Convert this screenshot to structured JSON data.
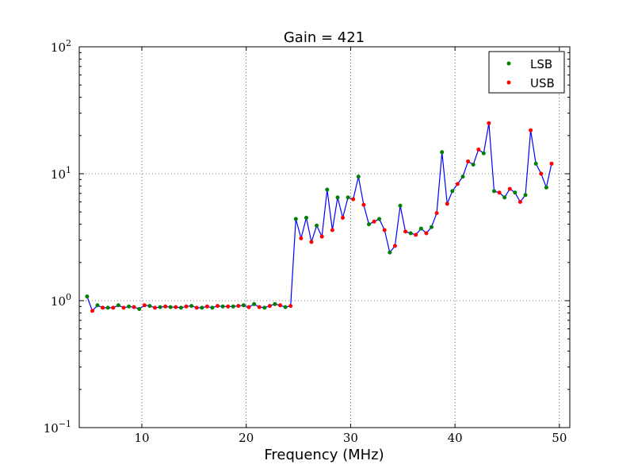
{
  "chart_data": {
    "type": "line",
    "title": "Gain = 421",
    "xlabel": "Frequency (MHz)",
    "ylabel": "",
    "xlim": [
      4,
      51
    ],
    "ylim": [
      0.1,
      100
    ],
    "yscale": "log",
    "grid": true,
    "legend": "top-right",
    "x_ticks": [
      10,
      20,
      30,
      40,
      50
    ],
    "y_ticks": [
      {
        "base": "10",
        "exp": "−1"
      },
      {
        "base": "10",
        "exp": "0"
      },
      {
        "base": "10",
        "exp": "1"
      },
      {
        "base": "10",
        "exp": "2"
      }
    ],
    "series": [
      {
        "name": "LSB",
        "color": "#008000",
        "marker": "dot"
      },
      {
        "name": "USB",
        "color": "#ff0000",
        "marker": "dot"
      }
    ],
    "line_color": "#0000ff",
    "x": [
      4.75,
      5.25,
      5.75,
      6.25,
      6.75,
      7.25,
      7.75,
      8.25,
      8.75,
      9.25,
      9.75,
      10.25,
      10.75,
      11.25,
      11.75,
      12.25,
      12.75,
      13.25,
      13.75,
      14.25,
      14.75,
      15.25,
      15.75,
      16.25,
      16.75,
      17.25,
      17.75,
      18.25,
      18.75,
      19.25,
      19.75,
      20.25,
      20.75,
      21.25,
      21.75,
      22.25,
      22.75,
      23.25,
      23.75,
      24.25,
      24.75,
      25.25,
      25.75,
      26.25,
      26.75,
      27.25,
      27.75,
      28.25,
      28.75,
      29.25,
      29.75,
      30.25,
      30.75,
      31.25,
      31.75,
      32.25,
      32.75,
      33.25,
      33.75,
      34.25,
      34.75,
      35.25,
      35.75,
      36.25,
      36.75,
      37.25,
      37.75,
      38.25,
      38.75,
      39.25,
      39.75,
      40.25,
      40.75,
      41.25,
      41.75,
      42.25,
      42.75,
      43.25,
      43.75,
      44.25,
      44.75,
      45.25,
      45.75,
      46.25,
      46.75,
      47.25,
      47.75,
      48.25,
      48.75,
      49.25
    ],
    "y": [
      1.08,
      0.83,
      0.92,
      0.88,
      0.88,
      0.88,
      0.92,
      0.88,
      0.9,
      0.89,
      0.86,
      0.92,
      0.91,
      0.88,
      0.89,
      0.9,
      0.89,
      0.89,
      0.88,
      0.9,
      0.91,
      0.88,
      0.88,
      0.9,
      0.88,
      0.91,
      0.9,
      0.9,
      0.9,
      0.91,
      0.92,
      0.89,
      0.94,
      0.89,
      0.88,
      0.91,
      0.94,
      0.92,
      0.89,
      0.91,
      4.4,
      3.1,
      4.5,
      2.9,
      3.9,
      3.2,
      7.5,
      3.6,
      6.5,
      4.5,
      6.5,
      6.3,
      9.5,
      5.7,
      4.0,
      4.2,
      4.4,
      3.6,
      2.4,
      2.7,
      5.6,
      3.5,
      3.4,
      3.3,
      3.7,
      3.4,
      3.8,
      4.9,
      14.8,
      5.8,
      7.3,
      8.3,
      9.5,
      12.5,
      11.8,
      15.5,
      14.5,
      25.0,
      7.3,
      7.1,
      6.5,
      7.6,
      7.1,
      6.0,
      6.8,
      22.0,
      12.0,
      10.0,
      7.8,
      12.0
    ],
    "series_of_point": [
      "LSB",
      "USB",
      "LSB",
      "USB",
      "LSB",
      "USB",
      "LSB",
      "USB",
      "LSB",
      "USB",
      "LSB",
      "USB",
      "LSB",
      "USB",
      "LSB",
      "USB",
      "LSB",
      "USB",
      "LSB",
      "USB",
      "LSB",
      "USB",
      "LSB",
      "USB",
      "LSB",
      "USB",
      "LSB",
      "USB",
      "LSB",
      "USB",
      "LSB",
      "USB",
      "LSB",
      "USB",
      "LSB",
      "USB",
      "LSB",
      "USB",
      "LSB",
      "USB",
      "LSB",
      "USB",
      "LSB",
      "USB",
      "LSB",
      "USB",
      "LSB",
      "USB",
      "LSB",
      "USB",
      "LSB",
      "USB",
      "LSB",
      "USB",
      "LSB",
      "USB",
      "LSB",
      "USB",
      "LSB",
      "USB",
      "LSB",
      "USB",
      "LSB",
      "USB",
      "LSB",
      "USB",
      "LSB",
      "USB",
      "LSB",
      "USB",
      "LSB",
      "USB",
      "LSB",
      "USB",
      "LSB",
      "USB",
      "LSB",
      "USB",
      "LSB",
      "USB",
      "LSB",
      "USB",
      "LSB",
      "USB",
      "LSB",
      "USB",
      "LSB",
      "USB",
      "LSB",
      "USB"
    ]
  }
}
